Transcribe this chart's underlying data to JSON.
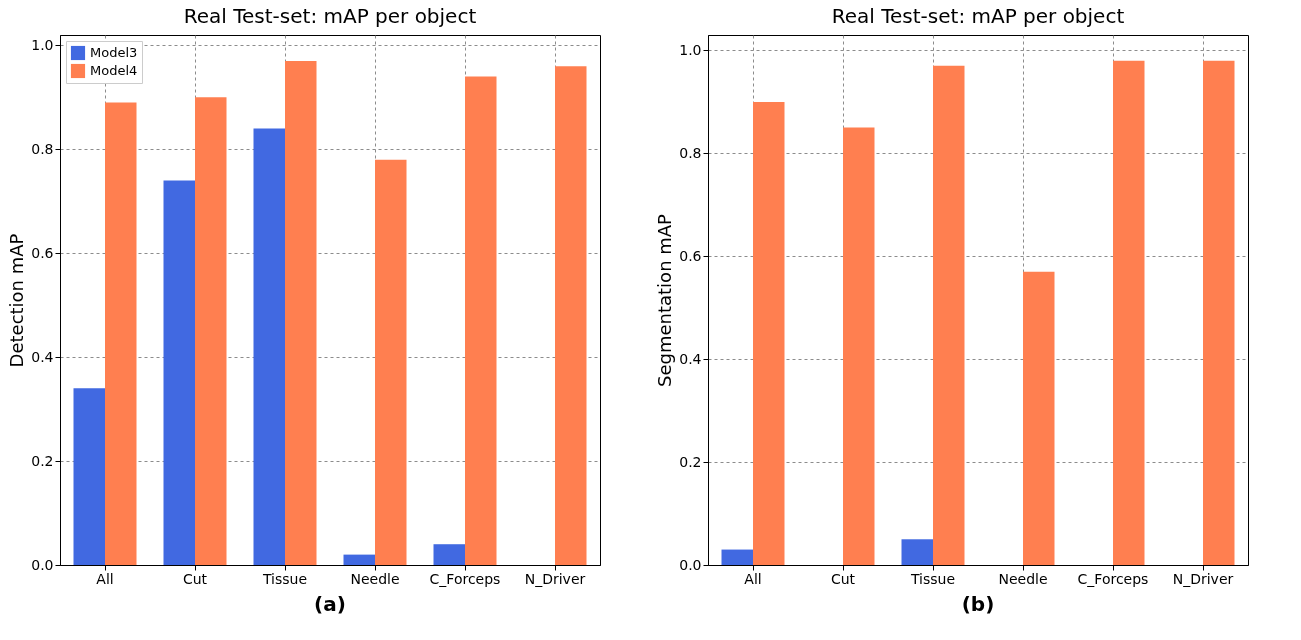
{
  "chart_data": [
    {
      "type": "bar",
      "title": "Real Test-set: mAP per object",
      "ylabel": "Detection mAP",
      "categories": [
        "All",
        "Cut",
        "Tissue",
        "Needle",
        "C_Forceps",
        "N_Driver"
      ],
      "series": [
        {
          "name": "Model3",
          "color": "#4169e1",
          "values": [
            0.34,
            0.74,
            0.84,
            0.02,
            0.04,
            0
          ]
        },
        {
          "name": "Model4",
          "color": "#ff7f50",
          "values": [
            0.89,
            0.9,
            0.97,
            0.78,
            0.94,
            0.96
          ]
        }
      ],
      "ylim": [
        0,
        1.02
      ],
      "yticks": [
        {
          "value": 0,
          "label": "0.0"
        },
        {
          "value": 0.2,
          "label": "0.2"
        },
        {
          "value": 0.4,
          "label": "0.4"
        },
        {
          "value": 0.6,
          "label": "0.6"
        },
        {
          "value": 0.8,
          "label": "0.8"
        },
        {
          "value": 1,
          "label": "1.0"
        }
      ],
      "grid": true,
      "legend": "top left",
      "annotations": [
        "(a)"
      ]
    },
    {
      "type": "bar",
      "title": "Real Test-set: mAP per object",
      "ylabel": "Segmentation mAP",
      "categories": [
        "All",
        "Cut",
        "Tissue",
        "Needle",
        "C_Forceps",
        "N_Driver"
      ],
      "series": [
        {
          "name": "Model3",
          "color": "#4169e1",
          "values": [
            0.03,
            0,
            0.05,
            0,
            0,
            0
          ]
        },
        {
          "name": "Model4",
          "color": "#ff7f50",
          "values": [
            0.9,
            0.85,
            0.97,
            0.57,
            0.98,
            0.98
          ]
        }
      ],
      "ylim": [
        0,
        1.03
      ],
      "yticks": [
        {
          "value": 0,
          "label": "0.0"
        },
        {
          "value": 0.2,
          "label": "0.2"
        },
        {
          "value": 0.4,
          "label": "0.4"
        },
        {
          "value": 0.6,
          "label": "0.6"
        },
        {
          "value": 0.8,
          "label": "0.8"
        },
        {
          "value": 1,
          "label": "1.0"
        }
      ],
      "grid": true,
      "legend": "top left",
      "annotations": [
        "(b)"
      ]
    }
  ]
}
